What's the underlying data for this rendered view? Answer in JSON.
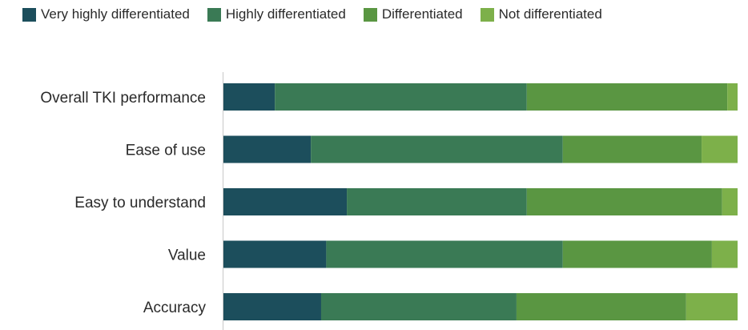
{
  "chart_data": {
    "type": "bar",
    "orientation": "horizontal",
    "stacked": true,
    "title": "",
    "xlabel": "",
    "ylabel": "",
    "xlim": [
      0,
      100
    ],
    "grid": false,
    "legend_position": "top-left",
    "categories": [
      "Overall TKI performance",
      "Ease of use",
      "Easy to understand",
      "Value",
      "Accuracy"
    ],
    "series": [
      {
        "name": "Very highly differentiated",
        "color": "#1c4e5c",
        "values": [
          10,
          17,
          24,
          20,
          19
        ]
      },
      {
        "name": "Highly differentiated",
        "color": "#3a7a55",
        "values": [
          49,
          49,
          35,
          46,
          38
        ]
      },
      {
        "name": "Differentiated",
        "color": "#5a9642",
        "values": [
          39,
          27,
          38,
          29,
          33
        ]
      },
      {
        "name": "Not differentiated",
        "color": "#7db04a",
        "values": [
          2,
          7,
          3,
          5,
          10
        ]
      }
    ]
  }
}
